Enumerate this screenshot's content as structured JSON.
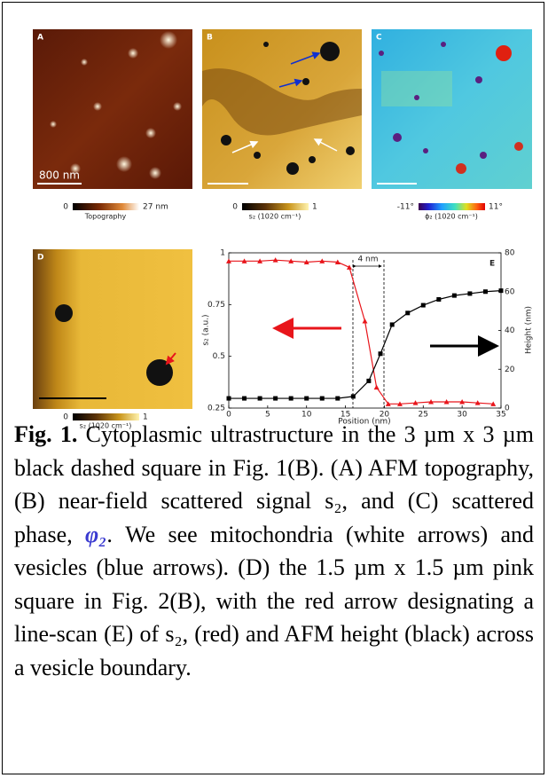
{
  "panels": [
    {
      "label": "A",
      "scale_bar": "800 nm",
      "colorbar": {
        "min": "0",
        "max": "27 nm",
        "title": "Topography"
      }
    },
    {
      "label": "B",
      "colorbar": {
        "min": "0",
        "max": "1",
        "title": "s₂ (1020 cm⁻¹)"
      }
    },
    {
      "label": "C",
      "colorbar": {
        "min": "-11°",
        "max": "11°",
        "title": "ϕ₂ (1020 cm⁻¹)"
      }
    },
    {
      "label": "D",
      "colorbar": {
        "min": "0",
        "max": "1",
        "title": "s₂ (1020 cm⁻¹)"
      }
    }
  ],
  "chart_data": {
    "type": "line",
    "label": "E",
    "annotation": "4 nm",
    "xlabel": "Position (nm)",
    "ylabel": "s₂ (a.u.)",
    "y2label": "Height (nm)",
    "xlim": [
      0,
      35
    ],
    "xticks": [
      0,
      5,
      10,
      15,
      20,
      25,
      30,
      35
    ],
    "ylim": [
      0.25,
      1
    ],
    "yticks": [
      0.25,
      0.5,
      0.75,
      1
    ],
    "y2lim": [
      0,
      80
    ],
    "y2ticks": [
      0,
      20,
      40,
      60,
      80
    ],
    "series": [
      {
        "color": "#e8151b",
        "marker": "triangle",
        "x": [
          0,
          2,
          4,
          6,
          8,
          10,
          12,
          14,
          15.5,
          17.5,
          19,
          20.5,
          22,
          24,
          26,
          28,
          30,
          32,
          34
        ],
        "values": [
          0.96,
          0.96,
          0.96,
          0.965,
          0.96,
          0.955,
          0.96,
          0.955,
          0.93,
          0.67,
          0.35,
          0.27,
          0.27,
          0.275,
          0.28,
          0.28,
          0.28,
          0.275,
          0.27
        ]
      },
      {
        "color": "#000000",
        "marker": "square",
        "axis": "y2",
        "x": [
          0,
          2,
          4,
          6,
          8,
          10,
          12,
          14,
          16,
          18,
          19.5,
          21,
          23,
          25,
          27,
          29,
          31,
          33,
          35
        ],
        "values": [
          5,
          5,
          5,
          5,
          5,
          5,
          5,
          5,
          6,
          14,
          28,
          43,
          49,
          53,
          56,
          58,
          59,
          60,
          60.5
        ]
      }
    ]
  },
  "caption": {
    "label": "Fig. 1.",
    "segments": [
      {
        "text": " Cytoplasmic ultrastructure  in the 3 µm x 3 µm black dashed square in Fig. 1(B). (A) AFM topography, (B) near-field scattered signal s₂, and (C) scattered phase, "
      },
      {
        "text": "φ₂",
        "style": "symbol"
      },
      {
        "text": ". We  see mitochondria (white arrows) and vesicles (blue arrows). (D) the 1.5 µm x 1.5 µm pink square in Fig. 2(B), with the red arrow designating a line-scan (E) of  s₂, (red) and AFM height (black) across a vesicle boundary."
      }
    ]
  }
}
